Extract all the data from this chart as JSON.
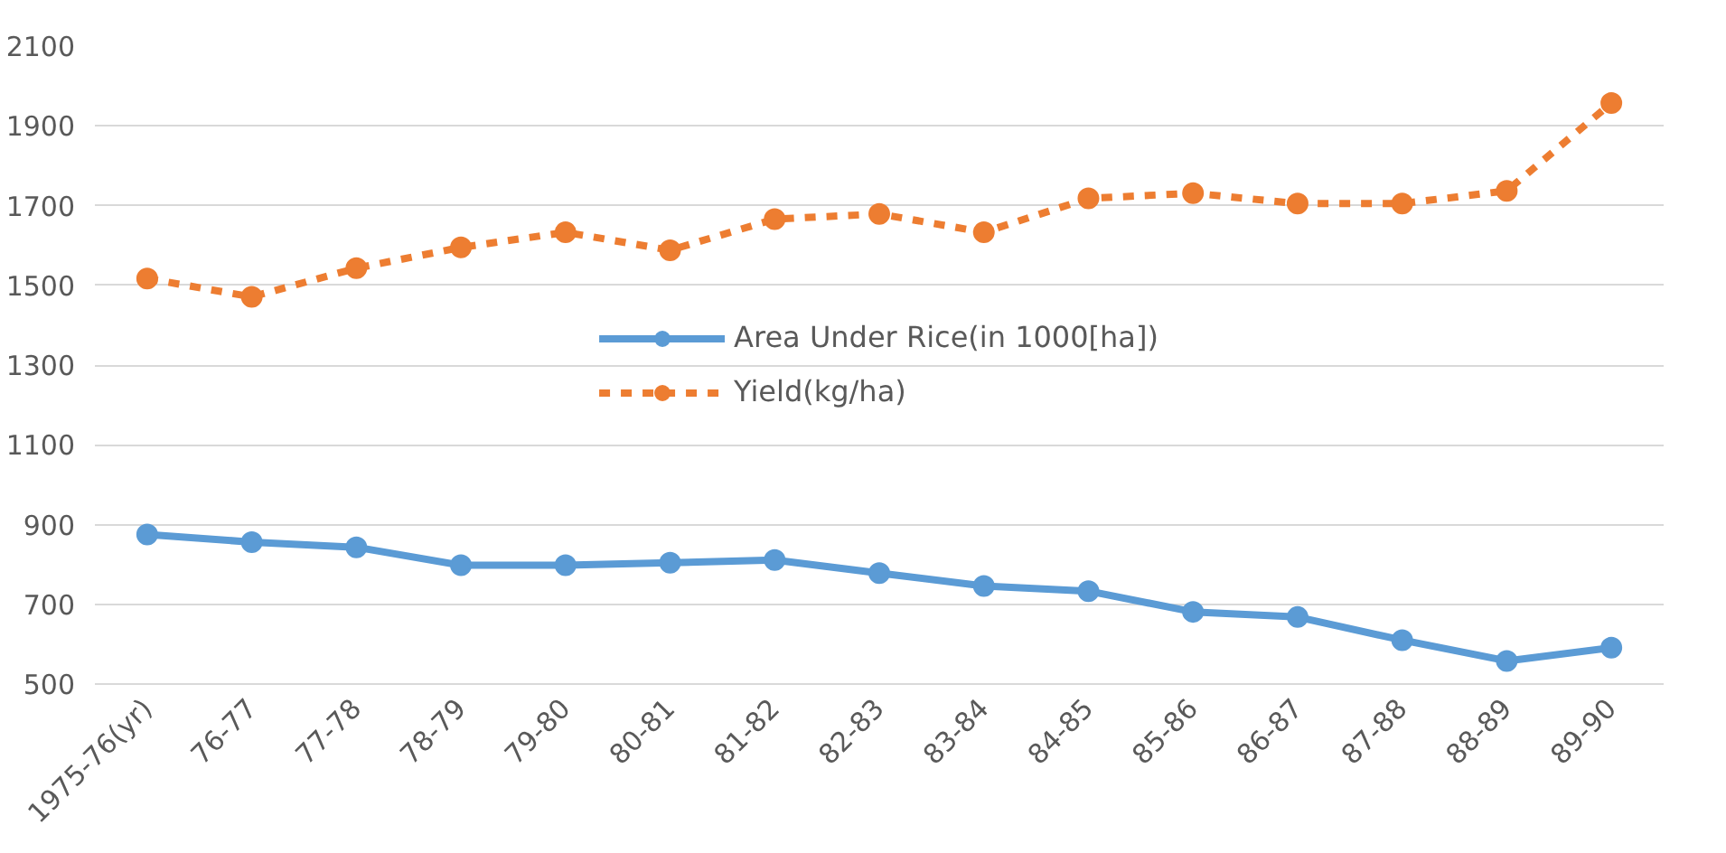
{
  "chart_data": {
    "type": "line",
    "categories": [
      "1975-76(yr)",
      "76-77",
      "77-78",
      "78-79",
      "79-80",
      "80-81",
      "81-82",
      "82-83",
      "83-84",
      "84-85",
      "85-86",
      "86-87",
      "87-88",
      "88-89",
      "89-90"
    ],
    "series": [
      {
        "name": "Area Under Rice(in 1000[ha])",
        "color": "#5b9bd5",
        "marker": "circle",
        "line_style": "solid",
        "values": [
          875,
          856,
          843,
          798,
          798,
          804,
          811,
          778,
          746,
          733,
          681,
          668,
          610,
          558,
          591
        ]
      },
      {
        "name": "Yield(kg/ha)",
        "color": "#ed7d31",
        "marker": "circle",
        "line_style": "dashed",
        "values": [
          1517,
          1471,
          1543,
          1595,
          1633,
          1588,
          1666,
          1679,
          1633,
          1718,
          1731,
          1705,
          1705,
          1737,
          1957
        ]
      }
    ],
    "ylim": [
      500,
      2100
    ],
    "yticks": [
      500,
      700,
      900,
      1100,
      1300,
      1500,
      1700,
      1900,
      2100
    ],
    "grid": "y",
    "legend": "center"
  }
}
